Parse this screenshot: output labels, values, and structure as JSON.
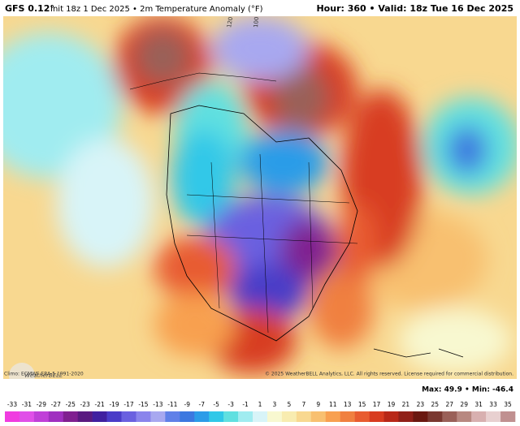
{
  "header": {
    "model": "GFS 0.12°",
    "description": "Init 18z 1 Dec 2025 • 2m Temperature Anomaly (°F)",
    "valid": "Hour: 360 • Valid: 18z Tue 16 Dec 2025"
  },
  "map": {
    "meridian_labels": [
      "120 W",
      "100 W"
    ],
    "logo": "WeatherBELL"
  },
  "footer": {
    "climo": "Climo: ECMWF ERA-5 1991-2020",
    "copyright": "© 2025 WeatherBELL Analytics, LLC. All rights reserved. License required for commercial distribution.",
    "stats": "Max: 49.9 • Min: -46.4"
  },
  "colorbar": {
    "ticks": [
      -33,
      -31,
      -29,
      -27,
      -25,
      -23,
      -21,
      -19,
      -17,
      -15,
      -13,
      -11,
      -9,
      -7,
      -5,
      -3,
      -1,
      1,
      3,
      5,
      7,
      9,
      11,
      13,
      15,
      17,
      19,
      21,
      23,
      25,
      27,
      29,
      31,
      33,
      35
    ],
    "colors": [
      "#f03ce0",
      "#e050e8",
      "#c040d8",
      "#a030c0",
      "#802090",
      "#5a1a80",
      "#4020a0",
      "#4a3cc8",
      "#6a60e0",
      "#8a84ec",
      "#a8a8f0",
      "#6080e8",
      "#3c78e0",
      "#2c9ce8",
      "#30c8e8",
      "#60e0e0",
      "#a0ecf0",
      "#d8f4f8",
      "#f8f8d0",
      "#f8ecb0",
      "#f8d890",
      "#f8c070",
      "#f8a050",
      "#f08040",
      "#e85c30",
      "#d83c20",
      "#b82818",
      "#902018",
      "#6a1810",
      "#7a3830",
      "#9a6058",
      "#b88880",
      "#d8b0b0",
      "#e8d0d0",
      "#c09090"
    ]
  }
}
